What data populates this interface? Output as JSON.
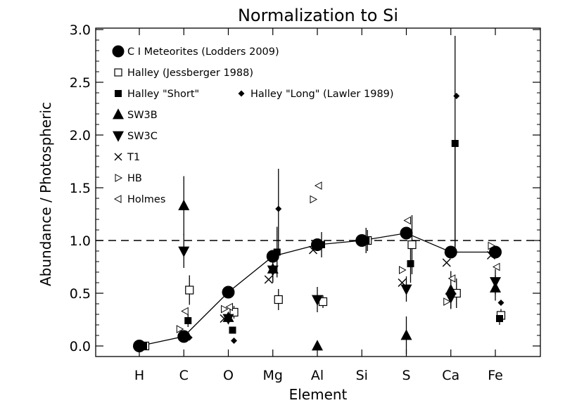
{
  "chart_data": {
    "type": "scatter",
    "title": "Normalization to Si",
    "xlabel": "Element",
    "ylabel": "Abundance / Photospheric",
    "categories": [
      "H",
      "C",
      "O",
      "Mg",
      "Al",
      "Si",
      "S",
      "Ca",
      "Fe"
    ],
    "ylim": [
      -0.1,
      3.0
    ],
    "yticks": [
      "0.0",
      "0.5",
      "1.0",
      "1.5",
      "2.0",
      "2.5",
      "3.0"
    ],
    "reference_line": 1.0,
    "legend": [
      "C I Meteorites (Lodders 2009)",
      "Halley (Jessberger 1988)",
      "Halley \"Short\"",
      "Halley \"Long\" (Lawler 1989)",
      "SW3B",
      "SW3C",
      "T1",
      "HB",
      "Holmes"
    ],
    "series": [
      {
        "name": "C I Meteorites (Lodders 2009)",
        "marker": "circle",
        "connected": true,
        "values": [
          0.0,
          0.09,
          0.51,
          0.85,
          0.96,
          1.0,
          1.07,
          0.89,
          0.89
        ],
        "err": [
          null,
          null,
          null,
          null,
          null,
          null,
          null,
          null,
          null
        ]
      },
      {
        "name": "Halley (Jessberger 1988)",
        "marker": "square-open",
        "values": [
          0.0,
          0.53,
          0.32,
          0.44,
          0.42,
          1.0,
          0.96,
          0.5,
          0.29
        ],
        "err": [
          null,
          0.14,
          0.06,
          0.1,
          0.06,
          0.1,
          0.28,
          0.14,
          0.06
        ]
      },
      {
        "name": "Halley \"Short\"",
        "marker": "square",
        "connected": true,
        "values": [
          0.0,
          0.24,
          0.15,
          0.89,
          0.96,
          1.0,
          0.78,
          1.92,
          0.26
        ],
        "err": [
          null,
          0.06,
          null,
          0.24,
          0.12,
          0.12,
          0.18,
          1.02,
          0.06
        ]
      },
      {
        "name": "Halley \"Long\" (Lawler 1989)",
        "marker": "diamond",
        "values": [
          null,
          0.08,
          0.05,
          1.3,
          null,
          null,
          null,
          2.37,
          0.41
        ],
        "err": [
          null,
          null,
          null,
          0.38,
          null,
          null,
          null,
          null,
          null
        ]
      },
      {
        "name": "SW3B",
        "marker": "triangle-up",
        "values": [
          null,
          1.33,
          0.27,
          0.73,
          0.0,
          null,
          0.1,
          0.53,
          0.55
        ],
        "err": [
          null,
          0.28,
          null,
          0.12,
          0.04,
          null,
          0.18,
          0.18,
          0.12
        ]
      },
      {
        "name": "SW3C",
        "marker": "triangle-down",
        "values": [
          null,
          0.9,
          0.26,
          0.72,
          0.44,
          null,
          0.54,
          0.46,
          0.61
        ],
        "err": [
          null,
          0.16,
          null,
          0.12,
          0.12,
          null,
          0.12,
          0.1,
          0.12
        ]
      },
      {
        "name": "T1",
        "marker": "x",
        "values": [
          null,
          null,
          0.26,
          0.63,
          0.91,
          null,
          0.6,
          0.79,
          0.86
        ],
        "err": [
          null,
          null,
          null,
          null,
          null,
          null,
          null,
          null,
          null
        ]
      },
      {
        "name": "HB",
        "marker": "triangle-right",
        "values": [
          null,
          0.16,
          0.35,
          null,
          1.39,
          null,
          0.72,
          0.42,
          0.95
        ],
        "err": [
          null,
          null,
          null,
          null,
          null,
          null,
          null,
          null,
          null
        ]
      },
      {
        "name": "Holmes",
        "marker": "triangle-left",
        "values": [
          null,
          0.33,
          0.37,
          null,
          1.52,
          null,
          1.19,
          0.64,
          0.75
        ],
        "err": [
          null,
          null,
          null,
          null,
          null,
          null,
          null,
          null,
          null
        ]
      }
    ]
  }
}
